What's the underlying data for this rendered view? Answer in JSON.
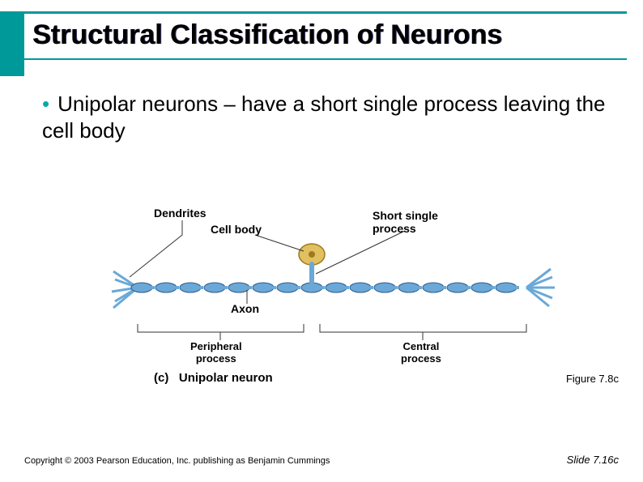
{
  "accent_color": "#009999",
  "title": "Structural Classification of Neurons",
  "bullet": {
    "text": "Unipolar neurons – have a short single process leaving the cell body"
  },
  "figure": {
    "type": "diagram",
    "name": "Unipolar neuron",
    "labels": {
      "dendrites": "Dendrites",
      "cell_body": "Cell body",
      "short_single_process": "Short single\nprocess",
      "axon": "Axon",
      "peripheral_process": "Peripheral\nprocess",
      "central_process": "Central\nprocess",
      "caption_prefix": "(c)",
      "caption_main": "Unipolar neuron"
    },
    "colors": {
      "axon_fill": "#6aa8d8",
      "axon_stroke": "#2d5b8a",
      "soma_fill": "#e0c060",
      "soma_stroke": "#a07820",
      "leader": "#333333",
      "brace": "#333333"
    }
  },
  "figure_ref": "Figure 7.8c",
  "copyright": "Copyright © 2003 Pearson Education, Inc. publishing as Benjamin Cummings",
  "slide_ref": "Slide 7.16c"
}
